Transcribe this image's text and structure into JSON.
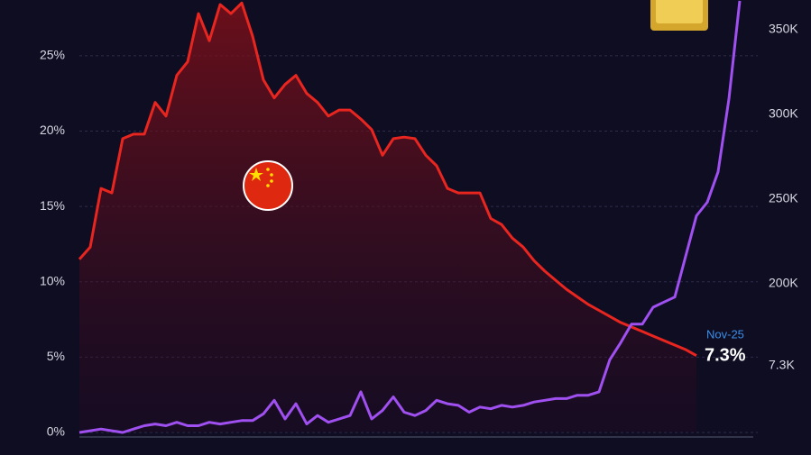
{
  "chart_data": {
    "type": "line",
    "categories": [
      null,
      null,
      null,
      null,
      null,
      null,
      null,
      null,
      null,
      null,
      null,
      null,
      null,
      null,
      null,
      null,
      null,
      null,
      null,
      null,
      null,
      null,
      null,
      null,
      null,
      null,
      null,
      null,
      null,
      null,
      null,
      null,
      null,
      null,
      null,
      null,
      null,
      null,
      null,
      null,
      null,
      null,
      null,
      null,
      null,
      null,
      null,
      null,
      null,
      null,
      null,
      null,
      null,
      null,
      null,
      null,
      null,
      null,
      null,
      null,
      null,
      null
    ],
    "series": [
      {
        "color": "#e8261f",
        "values": [
          11.5,
          12.3,
          16.2,
          15.9,
          19.5,
          19.8,
          19.8,
          21.9,
          21.0,
          23.7,
          24.6,
          27.8,
          26.0,
          28.4,
          27.8,
          28.5,
          26.3,
          23.4,
          22.2,
          23.1,
          23.7,
          22.5,
          21.9,
          21.0,
          21.4,
          21.4,
          20.8,
          20.1,
          18.4,
          19.5,
          19.6,
          19.5,
          18.4,
          17.7,
          16.2,
          15.9,
          15.9,
          15.9,
          14.2,
          13.8,
          12.9,
          12.3,
          11.4,
          10.7,
          10.1,
          9.5,
          9.0,
          8.5,
          8.1,
          7.7,
          7.3,
          7.0,
          6.7,
          6.4,
          6.1,
          5.8,
          5.5,
          5.1,
          null,
          null,
          null,
          null
        ]
      },
      {
        "color": "#a050f0",
        "axis": "y2",
        "values": [
          112000,
          113000,
          114000,
          113000,
          112000,
          114000,
          116000,
          117000,
          116000,
          118000,
          116000,
          116000,
          118000,
          117000,
          118000,
          119000,
          119000,
          123000,
          131000,
          120000,
          129000,
          117000,
          122000,
          118000,
          120000,
          122000,
          136000,
          120000,
          125000,
          133000,
          124000,
          122000,
          125000,
          131000,
          129000,
          128000,
          124000,
          127000,
          126000,
          128000,
          127000,
          128000,
          130000,
          131000,
          132000,
          132000,
          134000,
          134000,
          136000,
          155000,
          165000,
          176000,
          176000,
          186000,
          189000,
          192000,
          216000,
          240000,
          248000,
          266000,
          309000,
          367000
        ]
      }
    ],
    "ylim": [
      0,
      28.7
    ],
    "yticks": [
      {
        "value": 0,
        "label": "0%"
      },
      {
        "value": 5,
        "label": "5%"
      },
      {
        "value": 10,
        "label": "10%"
      },
      {
        "value": 15,
        "label": "15%"
      },
      {
        "value": 20,
        "label": "20%"
      },
      {
        "value": 25,
        "label": "25%"
      }
    ],
    "y2lim": [
      112000,
      367500
    ],
    "y2ticks": [
      {
        "value": 200000,
        "label": "200K"
      },
      {
        "value": 250000,
        "label": "250K"
      },
      {
        "value": 300000,
        "label": "300K"
      },
      {
        "value": 350000,
        "label": "350K"
      }
    ],
    "grid": true,
    "annotations": [
      "Nov-25",
      "7.3%",
      "7.3K"
    ]
  }
}
